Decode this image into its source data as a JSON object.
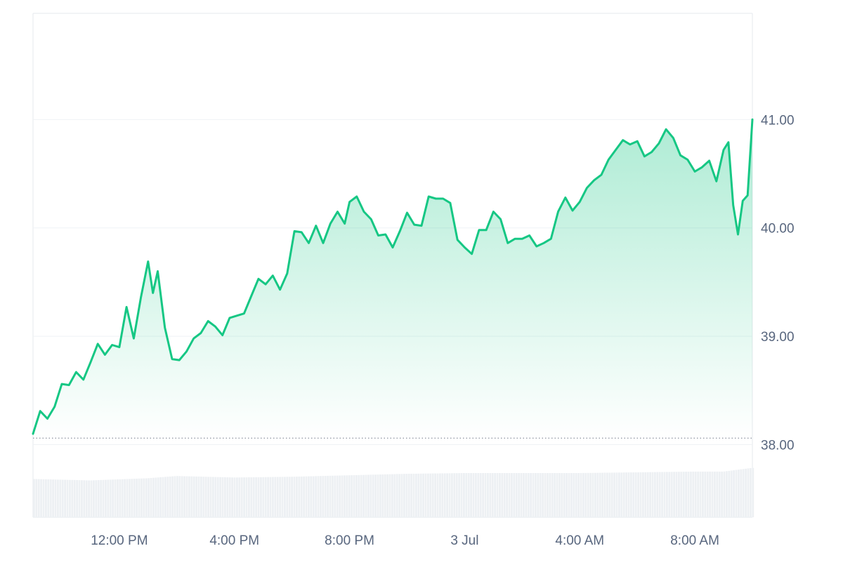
{
  "colors": {
    "line": "#16c784",
    "area_top": "#16c784",
    "grid": "#eff2f5",
    "frame": "#e6e9ee",
    "axis_text": "#58667e",
    "baseline": "#8a939f",
    "volume": "#edf0f3"
  },
  "chart_data": {
    "type": "area",
    "y_axis_position": "right",
    "grid": true,
    "ylim": [
      37.33,
      41.98
    ],
    "y_ticks": [
      {
        "value": 38,
        "label": "38.00"
      },
      {
        "value": 39,
        "label": "39.00"
      },
      {
        "value": 40,
        "label": "40.00"
      },
      {
        "value": 41,
        "label": "41.00"
      }
    ],
    "x_range": [
      "2 Jul 09:00",
      "3 Jul 10:00"
    ],
    "x_ticks": [
      {
        "time": "2 Jul 12:00",
        "label": "12:00 PM"
      },
      {
        "time": "2 Jul 16:00",
        "label": "4:00 PM"
      },
      {
        "time": "2 Jul 20:00",
        "label": "8:00 PM"
      },
      {
        "time": "3 Jul 00:00",
        "label": "3 Jul"
      },
      {
        "time": "3 Jul 04:00",
        "label": "4:00 AM"
      },
      {
        "time": "3 Jul 08:00",
        "label": "8:00 AM"
      }
    ],
    "reference_line": 38.06,
    "series": [
      {
        "points": [
          [
            "2 Jul 09:00",
            38.1
          ],
          [
            "2 Jul 09:15",
            38.31
          ],
          [
            "2 Jul 09:30",
            38.24
          ],
          [
            "2 Jul 09:45",
            38.35
          ],
          [
            "2 Jul 10:00",
            38.56
          ],
          [
            "2 Jul 10:15",
            38.55
          ],
          [
            "2 Jul 10:30",
            38.67
          ],
          [
            "2 Jul 10:45",
            38.6
          ],
          [
            "2 Jul 11:00",
            38.76
          ],
          [
            "2 Jul 11:15",
            38.93
          ],
          [
            "2 Jul 11:30",
            38.83
          ],
          [
            "2 Jul 11:45",
            38.92
          ],
          [
            "2 Jul 12:00",
            38.9
          ],
          [
            "2 Jul 12:15",
            39.27
          ],
          [
            "2 Jul 12:30",
            38.98
          ],
          [
            "2 Jul 12:45",
            39.36
          ],
          [
            "2 Jul 13:00",
            39.69
          ],
          [
            "2 Jul 13:10",
            39.4
          ],
          [
            "2 Jul 13:20",
            39.6
          ],
          [
            "2 Jul 13:35",
            39.08
          ],
          [
            "2 Jul 13:50",
            38.79
          ],
          [
            "2 Jul 14:05",
            38.78
          ],
          [
            "2 Jul 14:20",
            38.86
          ],
          [
            "2 Jul 14:35",
            38.98
          ],
          [
            "2 Jul 14:50",
            39.03
          ],
          [
            "2 Jul 15:05",
            39.14
          ],
          [
            "2 Jul 15:20",
            39.09
          ],
          [
            "2 Jul 15:35",
            39.01
          ],
          [
            "2 Jul 15:50",
            39.17
          ],
          [
            "2 Jul 16:05",
            39.19
          ],
          [
            "2 Jul 16:20",
            39.21
          ],
          [
            "2 Jul 16:35",
            39.37
          ],
          [
            "2 Jul 16:50",
            39.53
          ],
          [
            "2 Jul 17:05",
            39.48
          ],
          [
            "2 Jul 17:20",
            39.56
          ],
          [
            "2 Jul 17:35",
            39.43
          ],
          [
            "2 Jul 17:50",
            39.58
          ],
          [
            "2 Jul 18:05",
            39.97
          ],
          [
            "2 Jul 18:20",
            39.96
          ],
          [
            "2 Jul 18:35",
            39.86
          ],
          [
            "2 Jul 18:50",
            40.02
          ],
          [
            "2 Jul 19:05",
            39.86
          ],
          [
            "2 Jul 19:20",
            40.04
          ],
          [
            "2 Jul 19:35",
            40.15
          ],
          [
            "2 Jul 19:50",
            40.04
          ],
          [
            "2 Jul 20:00",
            40.24
          ],
          [
            "2 Jul 20:15",
            40.29
          ],
          [
            "2 Jul 20:30",
            40.15
          ],
          [
            "2 Jul 20:45",
            40.08
          ],
          [
            "2 Jul 21:00",
            39.93
          ],
          [
            "2 Jul 21:15",
            39.94
          ],
          [
            "2 Jul 21:30",
            39.82
          ],
          [
            "2 Jul 21:45",
            39.97
          ],
          [
            "2 Jul 22:00",
            40.14
          ],
          [
            "2 Jul 22:15",
            40.03
          ],
          [
            "2 Jul 22:30",
            40.02
          ],
          [
            "2 Jul 22:45",
            40.29
          ],
          [
            "2 Jul 23:00",
            40.27
          ],
          [
            "2 Jul 23:15",
            40.27
          ],
          [
            "2 Jul 23:30",
            40.23
          ],
          [
            "2 Jul 23:45",
            39.89
          ],
          [
            "3 Jul 00:00",
            39.82
          ],
          [
            "3 Jul 00:15",
            39.76
          ],
          [
            "3 Jul 00:30",
            39.98
          ],
          [
            "3 Jul 00:45",
            39.98
          ],
          [
            "3 Jul 01:00",
            40.15
          ],
          [
            "3 Jul 01:15",
            40.08
          ],
          [
            "3 Jul 01:30",
            39.86
          ],
          [
            "3 Jul 01:45",
            39.9
          ],
          [
            "3 Jul 02:00",
            39.9
          ],
          [
            "3 Jul 02:15",
            39.93
          ],
          [
            "3 Jul 02:30",
            39.83
          ],
          [
            "3 Jul 02:45",
            39.86
          ],
          [
            "3 Jul 03:00",
            39.9
          ],
          [
            "3 Jul 03:15",
            40.15
          ],
          [
            "3 Jul 03:30",
            40.28
          ],
          [
            "3 Jul 03:45",
            40.16
          ],
          [
            "3 Jul 04:00",
            40.24
          ],
          [
            "3 Jul 04:15",
            40.37
          ],
          [
            "3 Jul 04:30",
            40.44
          ],
          [
            "3 Jul 04:45",
            40.49
          ],
          [
            "3 Jul 05:00",
            40.63
          ],
          [
            "3 Jul 05:15",
            40.72
          ],
          [
            "3 Jul 05:30",
            40.81
          ],
          [
            "3 Jul 05:45",
            40.77
          ],
          [
            "3 Jul 06:00",
            40.8
          ],
          [
            "3 Jul 06:15",
            40.66
          ],
          [
            "3 Jul 06:30",
            40.7
          ],
          [
            "3 Jul 06:45",
            40.78
          ],
          [
            "3 Jul 07:00",
            40.91
          ],
          [
            "3 Jul 07:15",
            40.83
          ],
          [
            "3 Jul 07:30",
            40.67
          ],
          [
            "3 Jul 07:45",
            40.63
          ],
          [
            "3 Jul 08:00",
            40.52
          ],
          [
            "3 Jul 08:15",
            40.56
          ],
          [
            "3 Jul 08:30",
            40.62
          ],
          [
            "3 Jul 08:45",
            40.43
          ],
          [
            "3 Jul 09:00",
            40.72
          ],
          [
            "3 Jul 09:10",
            40.79
          ],
          [
            "3 Jul 09:20",
            40.21
          ],
          [
            "3 Jul 09:30",
            39.94
          ],
          [
            "3 Jul 09:40",
            40.25
          ],
          [
            "3 Jul 09:50",
            40.3
          ],
          [
            "3 Jul 10:00",
            41.0
          ]
        ]
      }
    ],
    "volume": {
      "range": [
        0,
        1
      ],
      "points": [
        [
          "2 Jul 09:00",
          0.52
        ],
        [
          "2 Jul 11:00",
          0.5
        ],
        [
          "2 Jul 13:00",
          0.53
        ],
        [
          "2 Jul 14:00",
          0.56
        ],
        [
          "2 Jul 16:00",
          0.54
        ],
        [
          "2 Jul 18:00",
          0.55
        ],
        [
          "2 Jul 20:00",
          0.57
        ],
        [
          "2 Jul 22:00",
          0.59
        ],
        [
          "3 Jul 00:00",
          0.6
        ],
        [
          "3 Jul 04:00",
          0.6
        ],
        [
          "3 Jul 06:00",
          0.61
        ],
        [
          "3 Jul 08:00",
          0.62
        ],
        [
          "3 Jul 09:00",
          0.62
        ],
        [
          "3 Jul 10:00",
          0.67
        ]
      ]
    }
  }
}
